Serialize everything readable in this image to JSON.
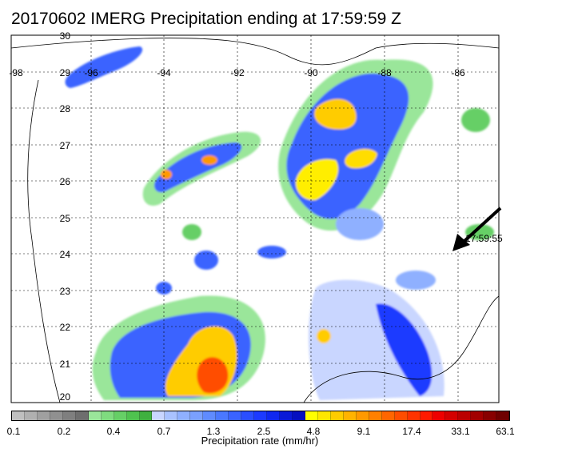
{
  "title": "20170602 IMERG Precipitation ending at 17:59:59 Z",
  "map": {
    "lon_labels": [
      "-98",
      "-96",
      "-94",
      "-92",
      "-90",
      "-88",
      "-86"
    ],
    "lat_labels": [
      "30",
      "29",
      "28",
      "27",
      "26",
      "25",
      "24",
      "23",
      "22",
      "21",
      "20"
    ],
    "track_time_label": "17:59:55",
    "background_color": "#ffffff",
    "coastline_color": "#000000",
    "grid_style": "dotted"
  },
  "colorbar": {
    "title": "Precipitation rate (mm/hr)",
    "tick_labels": [
      "0.1",
      "0.2",
      "0.4",
      "0.7",
      "1.3",
      "2.5",
      "4.8",
      "9.1",
      "17.4",
      "33.1",
      "63.1"
    ],
    "colors": [
      "#bfbfbf",
      "#b0b0b0",
      "#a0a0a0",
      "#909090",
      "#7f7f7f",
      "#6e6e6e",
      "#9ae69a",
      "#7fdc7f",
      "#66cf66",
      "#4fc24f",
      "#3fb03f",
      "#c9d6ff",
      "#a9c2ff",
      "#8fb0ff",
      "#7aa0ff",
      "#5f8bff",
      "#4a78ff",
      "#3a63ff",
      "#2a4eff",
      "#1c3aff",
      "#0f28f0",
      "#0a1ad8",
      "#0510c0",
      "#ffff00",
      "#ffe600",
      "#ffcc00",
      "#ffb300",
      "#ff9900",
      "#ff8000",
      "#ff6600",
      "#ff4d00",
      "#ff3300",
      "#ff1a00",
      "#ee0000",
      "#d40000",
      "#bb0000",
      "#a20000",
      "#880000",
      "#6f0000"
    ]
  }
}
